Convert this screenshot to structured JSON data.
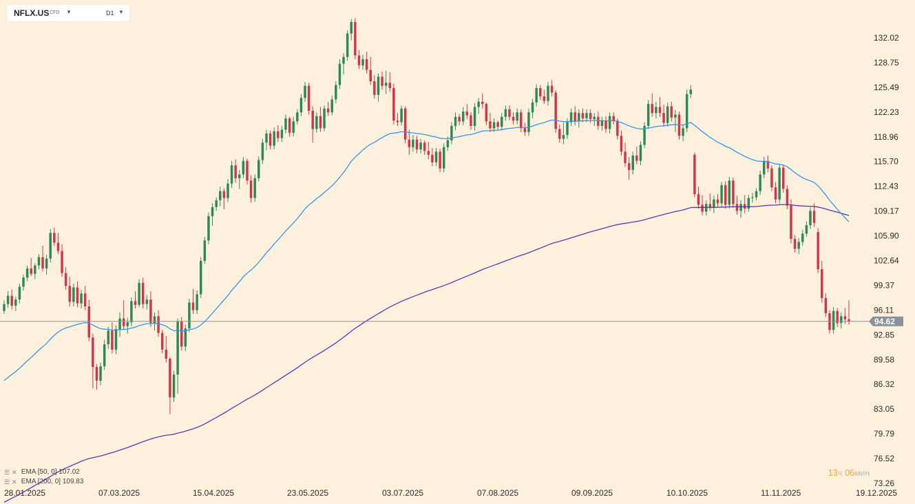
{
  "header": {
    "symbol": "NFLX.US",
    "symbol_suffix": "CFD",
    "timeframe": "D1"
  },
  "indicators": [
    {
      "label": "EMA",
      "params": "[50, 0]",
      "value": "107.02",
      "color": "#2f96f0"
    },
    {
      "label": "EMA",
      "params": "[200, 0]",
      "value": "109.83",
      "color": "#5b35b0"
    }
  ],
  "timer": {
    "hours": "13",
    "hours_unit": "ч",
    "minutes": "06",
    "minutes_unit": "мин"
  },
  "colors": {
    "up": "#2a8a56",
    "down": "#d23545",
    "background": "#fdf1dd",
    "price_line": "#8a9199",
    "price_tag_bg": "#8a9199"
  },
  "chart_data": {
    "type": "candlestick",
    "price_axis_ticks": [
      "132.02",
      "128.75",
      "125.49",
      "122.23",
      "118.96",
      "115.70",
      "112.43",
      "109.17",
      "105.90",
      "102.64",
      "99.37",
      "96.11",
      "92.85",
      "89.58",
      "86.32",
      "83.05",
      "79.79",
      "76.52",
      "73.26"
    ],
    "date_axis_ticks": [
      "28.01.2025",
      "07.03.2025",
      "15.04.2025",
      "23.05.2025",
      "03.07.2025",
      "07.08.2025",
      "09.09.2025",
      "10.10.2025",
      "11.11.2025",
      "19.12.2025"
    ],
    "current_price": "94.62",
    "ylim": [
      73.26,
      135.0
    ],
    "candles": [
      [
        96.0,
        97.4,
        95.6,
        96.9
      ],
      [
        96.9,
        98.6,
        96.4,
        98.0
      ],
      [
        98.0,
        98.8,
        96.2,
        96.7
      ],
      [
        96.7,
        97.9,
        96.0,
        97.5
      ],
      [
        97.5,
        99.6,
        97.0,
        99.2
      ],
      [
        99.2,
        100.8,
        98.7,
        100.4
      ],
      [
        100.4,
        102.0,
        99.9,
        101.6
      ],
      [
        101.6,
        103.0,
        100.6,
        100.9
      ],
      [
        100.9,
        102.3,
        100.2,
        102.0
      ],
      [
        102.0,
        103.5,
        101.5,
        103.1
      ],
      [
        103.1,
        104.6,
        101.2,
        101.6
      ],
      [
        101.6,
        103.4,
        100.8,
        102.9
      ],
      [
        102.9,
        106.8,
        102.4,
        106.3
      ],
      [
        106.3,
        107.0,
        104.6,
        105.0
      ],
      [
        105.0,
        106.3,
        103.5,
        103.9
      ],
      [
        103.9,
        104.8,
        100.5,
        101.0
      ],
      [
        101.0,
        101.8,
        98.8,
        99.3
      ],
      [
        99.3,
        100.5,
        96.6,
        97.2
      ],
      [
        97.2,
        99.6,
        96.6,
        99.1
      ],
      [
        99.1,
        99.9,
        96.5,
        97.0
      ],
      [
        97.0,
        98.8,
        96.3,
        98.3
      ],
      [
        98.3,
        99.3,
        96.1,
        96.6
      ],
      [
        96.6,
        97.5,
        92.0,
        92.5
      ],
      [
        92.5,
        93.0,
        85.8,
        88.6
      ],
      [
        88.6,
        89.0,
        85.6,
        86.8
      ],
      [
        86.8,
        89.2,
        86.2,
        88.7
      ],
      [
        88.7,
        92.2,
        88.2,
        91.6
      ],
      [
        91.6,
        93.9,
        91.0,
        93.4
      ],
      [
        93.4,
        94.5,
        90.4,
        90.9
      ],
      [
        90.9,
        94.1,
        90.3,
        93.6
      ],
      [
        93.6,
        95.8,
        92.6,
        95.0
      ],
      [
        95.0,
        97.4,
        93.6,
        94.0
      ],
      [
        94.0,
        95.1,
        93.0,
        94.5
      ],
      [
        94.5,
        97.8,
        94.0,
        97.3
      ],
      [
        97.3,
        98.6,
        96.3,
        96.8
      ],
      [
        96.8,
        100.2,
        96.5,
        99.7
      ],
      [
        99.7,
        100.4,
        96.3,
        96.9
      ],
      [
        96.9,
        98.1,
        96.2,
        97.5
      ],
      [
        97.5,
        98.6,
        93.9,
        94.4
      ],
      [
        94.4,
        95.8,
        93.4,
        95.3
      ],
      [
        95.3,
        96.1,
        92.6,
        93.1
      ],
      [
        93.1,
        93.5,
        90.4,
        90.9
      ],
      [
        90.9,
        92.7,
        89.2,
        89.7
      ],
      [
        89.7,
        89.9,
        82.4,
        84.6
      ],
      [
        84.6,
        88.1,
        84.0,
        87.6
      ],
      [
        87.6,
        95.0,
        85.1,
        94.6
      ],
      [
        94.6,
        95.2,
        90.8,
        91.3
      ],
      [
        91.3,
        94.2,
        90.7,
        93.7
      ],
      [
        93.7,
        97.6,
        93.2,
        97.1
      ],
      [
        97.1,
        98.9,
        95.6,
        96.1
      ],
      [
        96.1,
        98.7,
        95.6,
        98.2
      ],
      [
        98.2,
        103.1,
        97.7,
        102.6
      ],
      [
        102.6,
        105.8,
        102.2,
        105.3
      ],
      [
        105.3,
        109.0,
        104.8,
        108.5
      ],
      [
        108.5,
        110.2,
        107.2,
        109.7
      ],
      [
        109.7,
        111.0,
        109.2,
        110.6
      ],
      [
        110.6,
        112.4,
        109.8,
        111.8
      ],
      [
        111.8,
        112.2,
        109.4,
        110.9
      ],
      [
        110.9,
        113.4,
        110.4,
        112.8
      ],
      [
        112.8,
        115.8,
        112.2,
        115.2
      ],
      [
        115.2,
        116.0,
        112.9,
        113.5
      ],
      [
        113.5,
        114.6,
        112.1,
        114.0
      ],
      [
        114.0,
        116.3,
        113.5,
        115.8
      ],
      [
        115.8,
        116.1,
        112.7,
        113.2
      ],
      [
        113.2,
        113.9,
        110.3,
        110.9
      ],
      [
        110.9,
        114.0,
        110.4,
        113.5
      ],
      [
        113.5,
        116.4,
        113.1,
        115.9
      ],
      [
        115.9,
        118.7,
        115.4,
        118.2
      ],
      [
        118.2,
        119.9,
        117.2,
        119.4
      ],
      [
        119.4,
        119.8,
        117.3,
        117.8
      ],
      [
        117.8,
        120.2,
        117.3,
        119.7
      ],
      [
        119.7,
        120.5,
        118.3,
        118.8
      ],
      [
        118.8,
        120.4,
        118.3,
        119.9
      ],
      [
        119.9,
        121.9,
        119.4,
        121.4
      ],
      [
        121.4,
        121.6,
        119.0,
        119.5
      ],
      [
        119.5,
        121.6,
        119.0,
        121.0
      ],
      [
        121.0,
        122.6,
        120.6,
        122.2
      ],
      [
        122.2,
        124.6,
        121.7,
        124.1
      ],
      [
        124.1,
        126.2,
        123.6,
        125.7
      ],
      [
        125.7,
        126.1,
        121.9,
        122.4
      ],
      [
        122.4,
        123.0,
        118.2,
        120.0
      ],
      [
        120.0,
        122.2,
        119.5,
        121.7
      ],
      [
        121.7,
        122.9,
        119.6,
        120.1
      ],
      [
        120.1,
        123.1,
        119.7,
        122.7
      ],
      [
        122.7,
        123.6,
        121.7,
        122.2
      ],
      [
        122.2,
        124.4,
        121.8,
        123.9
      ],
      [
        123.9,
        126.3,
        123.4,
        125.8
      ],
      [
        125.8,
        129.2,
        125.3,
        128.6
      ],
      [
        128.6,
        130.0,
        127.2,
        129.5
      ],
      [
        129.5,
        133.0,
        129.0,
        132.6
      ],
      [
        132.6,
        134.5,
        131.7,
        134.1
      ],
      [
        134.1,
        134.6,
        129.2,
        129.7
      ],
      [
        129.7,
        130.4,
        127.9,
        128.4
      ],
      [
        128.4,
        129.8,
        127.8,
        129.2
      ],
      [
        129.2,
        130.2,
        127.3,
        127.8
      ],
      [
        127.8,
        129.5,
        125.8,
        126.3
      ],
      [
        126.3,
        127.1,
        124.0,
        124.5
      ],
      [
        124.5,
        127.3,
        123.6,
        126.9
      ],
      [
        126.9,
        127.6,
        125.2,
        125.7
      ],
      [
        125.7,
        127.7,
        124.6,
        126.1
      ],
      [
        126.1,
        127.5,
        124.9,
        125.4
      ],
      [
        125.4,
        126.0,
        120.6,
        121.1
      ],
      [
        121.1,
        122.1,
        120.4,
        120.9
      ],
      [
        120.9,
        123.1,
        120.5,
        122.7
      ],
      [
        122.7,
        123.0,
        118.1,
        118.6
      ],
      [
        118.6,
        119.9,
        116.6,
        117.6
      ],
      [
        117.6,
        119.2,
        117.0,
        118.6
      ],
      [
        118.6,
        119.1,
        116.8,
        117.3
      ],
      [
        117.3,
        118.7,
        116.8,
        118.2
      ],
      [
        118.2,
        118.5,
        116.6,
        117.1
      ],
      [
        117.1,
        118.3,
        116.0,
        116.6
      ],
      [
        116.6,
        117.5,
        115.1,
        115.6
      ],
      [
        115.6,
        117.5,
        115.1,
        117.0
      ],
      [
        117.0,
        117.4,
        114.3,
        114.8
      ],
      [
        114.8,
        118.1,
        114.3,
        117.6
      ],
      [
        117.6,
        119.0,
        117.1,
        118.5
      ],
      [
        118.5,
        120.9,
        118.0,
        120.4
      ],
      [
        120.4,
        122.2,
        119.8,
        121.6
      ],
      [
        121.6,
        122.0,
        120.5,
        121.0
      ],
      [
        121.0,
        122.9,
        120.5,
        122.3
      ],
      [
        122.3,
        123.3,
        121.3,
        121.8
      ],
      [
        121.8,
        122.2,
        119.9,
        120.4
      ],
      [
        120.4,
        123.4,
        119.8,
        122.9
      ],
      [
        122.9,
        124.1,
        122.0,
        123.6
      ],
      [
        123.6,
        124.7,
        122.7,
        123.3
      ],
      [
        123.3,
        123.5,
        120.5,
        121.0
      ],
      [
        121.0,
        122.1,
        119.6,
        120.1
      ],
      [
        120.1,
        121.4,
        119.6,
        120.9
      ],
      [
        120.9,
        121.1,
        119.8,
        120.3
      ],
      [
        120.3,
        122.1,
        119.8,
        121.6
      ],
      [
        121.6,
        123.1,
        121.1,
        122.6
      ],
      [
        122.6,
        123.1,
        121.2,
        121.6
      ],
      [
        121.6,
        122.2,
        120.6,
        121.1
      ],
      [
        121.1,
        122.7,
        120.6,
        122.2
      ],
      [
        122.2,
        122.6,
        119.6,
        120.1
      ],
      [
        120.1,
        120.8,
        119.1,
        119.6
      ],
      [
        119.6,
        122.7,
        119.1,
        122.2
      ],
      [
        122.2,
        124.0,
        121.4,
        123.5
      ],
      [
        123.5,
        125.9,
        123.0,
        125.4
      ],
      [
        125.4,
        125.8,
        123.8,
        124.3
      ],
      [
        124.3,
        125.2,
        123.3,
        123.7
      ],
      [
        123.7,
        126.2,
        123.1,
        125.7
      ],
      [
        125.7,
        126.5,
        124.3,
        124.8
      ],
      [
        124.8,
        125.1,
        119.5,
        120.0
      ],
      [
        120.0,
        120.6,
        118.2,
        118.7
      ],
      [
        118.7,
        120.8,
        118.0,
        119.2
      ],
      [
        119.2,
        121.4,
        118.7,
        120.9
      ],
      [
        120.9,
        122.7,
        120.4,
        122.2
      ],
      [
        122.2,
        123.0,
        120.5,
        121.0
      ],
      [
        121.0,
        122.6,
        120.2,
        122.1
      ],
      [
        122.1,
        122.7,
        120.9,
        121.4
      ],
      [
        121.4,
        122.6,
        120.9,
        122.1
      ],
      [
        122.1,
        122.6,
        120.8,
        121.3
      ],
      [
        121.3,
        122.1,
        120.4,
        121.6
      ],
      [
        121.6,
        122.3,
        119.9,
        120.4
      ],
      [
        120.4,
        121.6,
        119.8,
        121.1
      ],
      [
        121.1,
        121.7,
        119.5,
        120.0
      ],
      [
        120.0,
        122.2,
        119.4,
        121.7
      ],
      [
        121.7,
        122.2,
        120.6,
        121.1
      ],
      [
        121.1,
        121.4,
        118.6,
        119.1
      ],
      [
        119.1,
        119.8,
        116.5,
        117.0
      ],
      [
        117.0,
        118.2,
        115.0,
        115.5
      ],
      [
        115.5,
        116.3,
        113.3,
        114.6
      ],
      [
        114.6,
        117.0,
        114.0,
        116.5
      ],
      [
        116.5,
        117.7,
        115.3,
        115.8
      ],
      [
        115.8,
        118.4,
        115.2,
        117.9
      ],
      [
        117.9,
        120.9,
        117.5,
        120.4
      ],
      [
        120.4,
        123.8,
        120.0,
        123.3
      ],
      [
        123.3,
        124.7,
        121.6,
        122.1
      ],
      [
        122.1,
        123.6,
        121.4,
        122.9
      ],
      [
        122.9,
        124.2,
        121.6,
        122.1
      ],
      [
        122.1,
        123.2,
        120.3,
        120.8
      ],
      [
        120.8,
        123.5,
        120.3,
        123.0
      ],
      [
        123.0,
        123.6,
        121.0,
        121.5
      ],
      [
        121.5,
        122.5,
        119.6,
        121.9
      ],
      [
        121.9,
        122.3,
        118.6,
        119.1
      ],
      [
        119.1,
        120.6,
        118.4,
        120.1
      ],
      [
        120.1,
        125.2,
        119.6,
        124.6
      ],
      [
        124.6,
        125.8,
        124.1,
        125.2
      ],
      [
        116.6,
        116.9,
        111.0,
        111.4
      ],
      [
        111.4,
        112.4,
        109.5,
        110.0
      ],
      [
        110.0,
        111.3,
        108.6,
        109.1
      ],
      [
        109.1,
        110.6,
        108.6,
        110.1
      ],
      [
        110.1,
        111.5,
        109.2,
        109.7
      ],
      [
        109.7,
        111.2,
        108.9,
        110.7
      ],
      [
        110.7,
        111.4,
        109.7,
        110.2
      ],
      [
        110.2,
        113.0,
        109.7,
        112.6
      ],
      [
        112.6,
        113.1,
        109.5,
        110.0
      ],
      [
        110.0,
        113.7,
        109.5,
        113.2
      ],
      [
        113.2,
        113.6,
        109.6,
        110.1
      ],
      [
        110.1,
        111.2,
        108.7,
        109.2
      ],
      [
        109.2,
        110.6,
        108.3,
        110.1
      ],
      [
        110.1,
        111.3,
        108.9,
        109.5
      ],
      [
        109.5,
        111.3,
        109.1,
        110.9
      ],
      [
        110.9,
        111.6,
        110.3,
        111.0
      ],
      [
        111.0,
        112.2,
        110.6,
        111.8
      ],
      [
        111.8,
        114.5,
        111.3,
        114.0
      ],
      [
        114.0,
        116.3,
        113.5,
        115.8
      ],
      [
        115.8,
        116.5,
        114.3,
        114.8
      ],
      [
        114.8,
        115.2,
        111.8,
        112.3
      ],
      [
        112.3,
        113.0,
        110.2,
        110.7
      ],
      [
        110.7,
        115.4,
        110.2,
        114.9
      ],
      [
        114.9,
        115.3,
        111.6,
        112.1
      ],
      [
        112.1,
        112.6,
        109.4,
        109.9
      ],
      [
        109.9,
        110.7,
        104.9,
        105.5
      ],
      [
        105.5,
        106.0,
        103.7,
        104.2
      ],
      [
        104.2,
        105.6,
        103.5,
        105.1
      ],
      [
        105.1,
        106.7,
        104.6,
        106.2
      ],
      [
        106.2,
        107.8,
        105.8,
        107.3
      ],
      [
        107.3,
        109.7,
        106.8,
        109.2
      ],
      [
        109.2,
        110.2,
        107.1,
        107.6
      ],
      [
        106.4,
        106.9,
        101.0,
        101.5
      ],
      [
        101.5,
        102.6,
        97.1,
        97.7
      ],
      [
        97.7,
        98.3,
        95.2,
        95.7
      ],
      [
        95.7,
        96.1,
        93.0,
        93.5
      ],
      [
        93.5,
        96.5,
        93.0,
        96.0
      ],
      [
        96.0,
        96.4,
        93.9,
        94.4
      ],
      [
        94.4,
        95.8,
        93.7,
        95.3
      ],
      [
        95.3,
        96.4,
        94.3,
        94.9
      ],
      [
        94.9,
        97.4,
        94.2,
        94.62
      ]
    ]
  }
}
